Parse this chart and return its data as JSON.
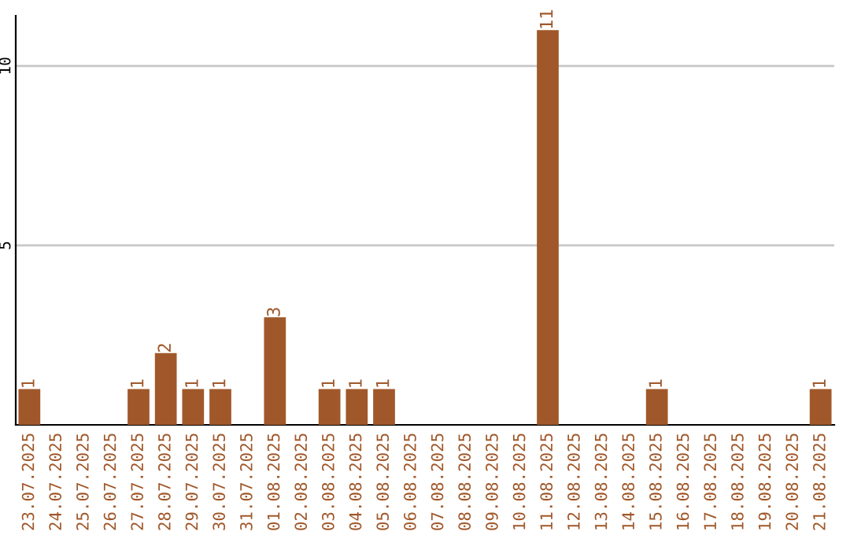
{
  "chart_data": {
    "type": "bar",
    "categories": [
      "23.07.2025",
      "24.07.2025",
      "25.07.2025",
      "26.07.2025",
      "27.07.2025",
      "28.07.2025",
      "29.07.2025",
      "30.07.2025",
      "31.07.2025",
      "01.08.2025",
      "02.08.2025",
      "03.08.2025",
      "04.08.2025",
      "05.08.2025",
      "06.08.2025",
      "07.08.2025",
      "08.08.2025",
      "09.08.2025",
      "10.08.2025",
      "11.08.2025",
      "12.08.2025",
      "13.08.2025",
      "14.08.2025",
      "15.08.2025",
      "16.08.2025",
      "17.08.2025",
      "18.08.2025",
      "19.08.2025",
      "20.08.2025",
      "21.08.2025"
    ],
    "values": [
      1,
      0,
      0,
      0,
      1,
      2,
      1,
      1,
      0,
      3,
      0,
      1,
      1,
      1,
      0,
      0,
      0,
      0,
      0,
      11,
      0,
      0,
      0,
      1,
      0,
      0,
      0,
      0,
      0,
      1
    ],
    "value_labels": [
      "1",
      null,
      null,
      null,
      "1",
      "2",
      "1",
      "1",
      null,
      "3",
      null,
      "1",
      "1",
      "1",
      null,
      null,
      null,
      null,
      null,
      "11",
      null,
      null,
      null,
      "1",
      null,
      null,
      null,
      null,
      null,
      "1"
    ],
    "color": "#a0582a",
    "ylim": [
      0,
      11.4
    ],
    "yticks": [
      5,
      10
    ],
    "grid": "y",
    "legend": false
  }
}
